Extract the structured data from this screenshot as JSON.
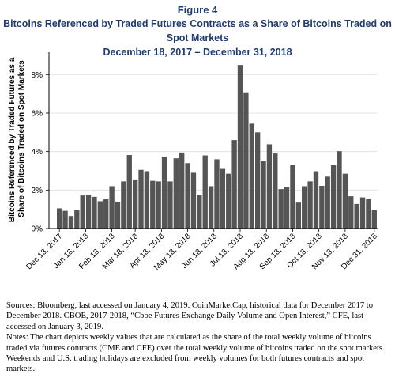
{
  "figure_label": "Figure 4",
  "title": "Bitcoins Referenced by Traded Futures Contracts as a Share of Bitcoins Traded on Spot Markets",
  "subtitle": "December 18, 2017 – December 31, 2018",
  "sources": "Sources: Bloomberg, last accessed on January 4, 2019. CoinMarketCap, historical data for December 2017 to December 2018. CBOE, 2017-2018, “Cboe Futures Exchange Daily Volume and Open Interest,” CFE, last accessed on January 3, 2019.",
  "notes": "Notes: The chart depicts weekly values that are calculated as the share of the total weekly volume of bitcoins traded via futures contracts (CME and CFE) over the total weekly volume of bitcoins traded on the spot markets. Weekends and U.S. trading holidays are excluded from weekly volumes for both futures contracts and spot markets.",
  "colors": {
    "bar": "#555555",
    "title": "#1f3b73",
    "grid": "#dddddd"
  },
  "chart_data": {
    "type": "bar",
    "ylabel": "Bitcoins Referenced by Traded Futures as a Share of Bitcoins Traded on Spot Markets",
    "ylim": [
      0,
      0.09
    ],
    "yticks": [
      0,
      0.02,
      0.04,
      0.06,
      0.08
    ],
    "ytick_labels": [
      "0%",
      "2%",
      "4%",
      "6%",
      "8%"
    ],
    "xtick_labels": [
      "Dec 18, 2017",
      "Jan 18, 2018",
      "Feb 18, 2018",
      "Mar 18, 2018",
      "Apr 18, 2018",
      "May 18, 2018",
      "Jun 18, 2018",
      "Jul 18, 2018",
      "Aug 18, 2018",
      "Sep 18, 2018",
      "Oct 18, 2018",
      "Nov 18, 2018",
      "Dec 31, 2018"
    ],
    "xtick_bar_index": [
      0,
      4.5,
      9,
      13,
      17.5,
      22,
      26.5,
      31,
      35.5,
      40,
      44.5,
      49,
      54
    ],
    "grid": true,
    "values": [
      0.0105,
      0.0092,
      0.0065,
      0.0095,
      0.0172,
      0.0175,
      0.0165,
      0.0142,
      0.0152,
      0.022,
      0.014,
      0.0245,
      0.0382,
      0.0255,
      0.0305,
      0.0298,
      0.0248,
      0.0245,
      0.0372,
      0.0245,
      0.0365,
      0.0395,
      0.034,
      0.029,
      0.0175,
      0.038,
      0.022,
      0.036,
      0.031,
      0.0285,
      0.046,
      0.085,
      0.0708,
      0.0545,
      0.05,
      0.0352,
      0.0438,
      0.039,
      0.0205,
      0.0215,
      0.0332,
      0.0135,
      0.022,
      0.0245,
      0.0298,
      0.0222,
      0.027,
      0.033,
      0.0402,
      0.0285,
      0.0168,
      0.0128,
      0.0162,
      0.0152,
      0.0095
    ]
  }
}
